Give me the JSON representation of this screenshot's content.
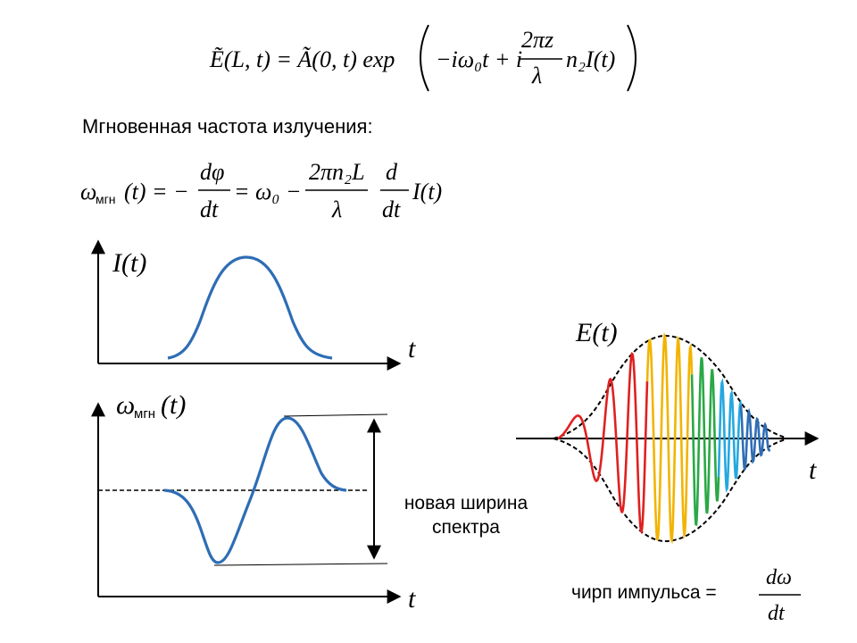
{
  "formula_field": {
    "lhs": "Ẽ(L, t) = Ã(0, t) exp",
    "exponent_prefix": "−iω₀t + i",
    "fraction_num": "2πz",
    "fraction_den": "λ",
    "exponent_suffix": "n₂I(t)"
  },
  "heading": "Мгновенная частота излучения:",
  "formula_freq": {
    "lhs": "ω",
    "lhs_sub": "мгн",
    "lhs_arg": "(t) = −",
    "frac1_num": "dφ",
    "frac1_den": "dt",
    "mid": "= ω₀ −",
    "frac2_num": "2πn₂L",
    "frac2_den": "λ",
    "frac3_num": "d",
    "frac3_den": "dt",
    "tail": "I(t)"
  },
  "plot_intensity": {
    "ylabel": "I(t)",
    "xlabel": "t"
  },
  "plot_freq": {
    "ylabel_main": "ω",
    "ylabel_sub": "мгн",
    "ylabel_arg": "(t)",
    "xlabel": "t"
  },
  "annotation_width": {
    "line1": "новая ширина",
    "line2": "спектра"
  },
  "plot_field": {
    "ylabel": "E(t)",
    "xlabel": "t"
  },
  "chirp": {
    "label": "чирп импульса =",
    "num": "dω",
    "den": "dt"
  },
  "colors": {
    "curve": "#2e6db5",
    "red": "#e02020",
    "yellow": "#f2b400",
    "green": "#2aa845",
    "cyan": "#25a8e0",
    "blue": "#2e6db5"
  }
}
